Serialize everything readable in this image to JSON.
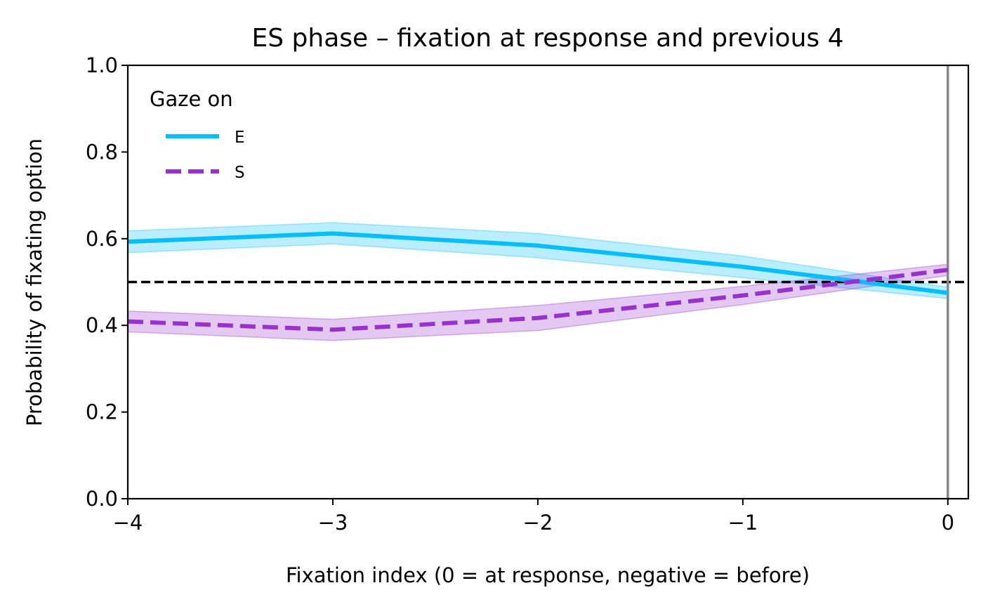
{
  "chart_data": {
    "type": "line",
    "title": "ES phase – fixation at response and previous 4",
    "xlabel": "Fixation index (0 = at response, negative = before)",
    "ylabel": "Probability of fixating option",
    "xlim": [
      -4,
      0.1
    ],
    "ylim": [
      0,
      1
    ],
    "x": [
      -4,
      -3,
      -2,
      -1,
      0
    ],
    "xticks": [
      -4,
      -3,
      -2,
      -1,
      0
    ],
    "xtick_labels": [
      "−4",
      "−3",
      "−2",
      "−1",
      "0"
    ],
    "yticks": [
      0,
      0.2,
      0.4,
      0.6,
      0.8,
      1.0
    ],
    "ytick_labels": [
      "0.0",
      "0.2",
      "0.4",
      "0.6",
      "0.8",
      "1.0"
    ],
    "legend": {
      "title": "Gaze on",
      "position": "upper left"
    },
    "reference_lines": [
      {
        "orientation": "horizontal",
        "value": 0.5,
        "style": "dashed",
        "color": "#000000"
      },
      {
        "orientation": "vertical",
        "value": 0,
        "style": "solid",
        "color": "#888888"
      }
    ],
    "series": [
      {
        "name": "E",
        "color": "#00BFFF",
        "style": "solid",
        "values": [
          0.593,
          0.612,
          0.584,
          0.535,
          0.475
        ],
        "lower": [
          0.568,
          0.588,
          0.556,
          0.51,
          0.462
        ],
        "upper": [
          0.618,
          0.637,
          0.612,
          0.56,
          0.488
        ]
      },
      {
        "name": "S",
        "color": "#9932CC",
        "style": "dashed",
        "values": [
          0.409,
          0.39,
          0.417,
          0.469,
          0.528
        ],
        "lower": [
          0.385,
          0.365,
          0.388,
          0.448,
          0.515
        ],
        "upper": [
          0.433,
          0.414,
          0.446,
          0.49,
          0.541
        ]
      }
    ],
    "grid": false
  }
}
